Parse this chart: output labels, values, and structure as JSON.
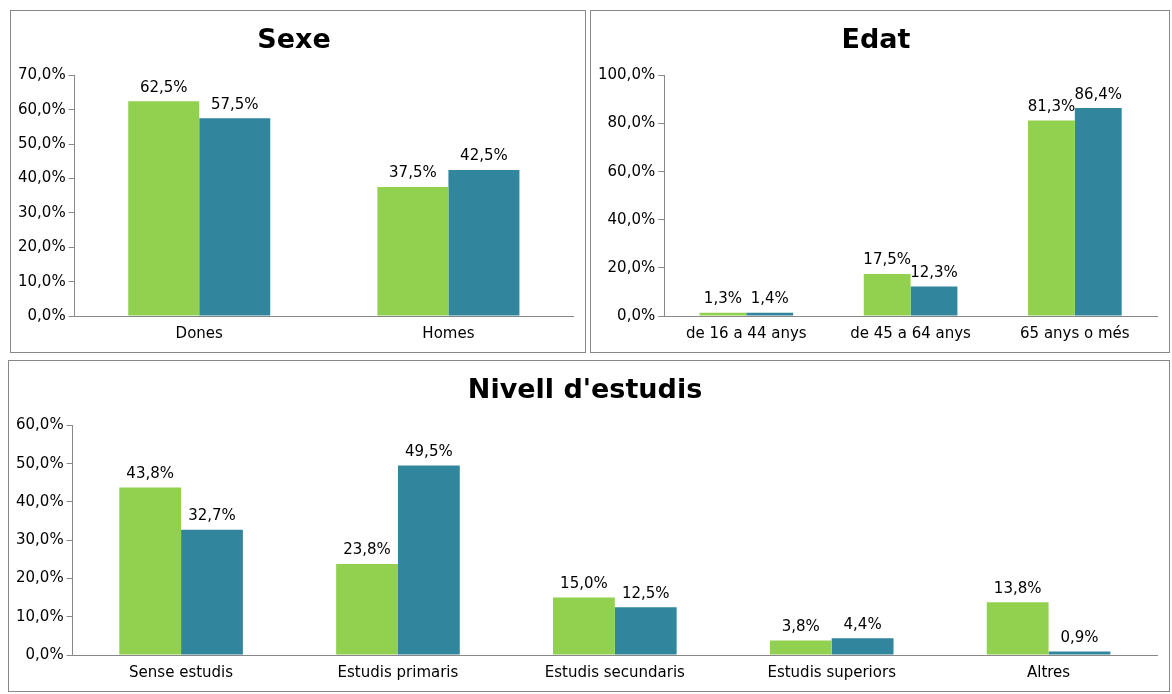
{
  "chart_data": [
    {
      "type": "bar",
      "title": "Sexe",
      "categories": [
        "Dones",
        "Homes"
      ],
      "series": [
        {
          "color": "#92d050",
          "values": [
            62.5,
            37.5
          ],
          "value_labels": [
            "62,5%",
            "37,5%"
          ]
        },
        {
          "color": "#31859c",
          "values": [
            57.5,
            42.5
          ],
          "value_labels": [
            "57,5%",
            "42,5%"
          ]
        }
      ],
      "ylim": [
        0,
        70
      ],
      "yticks": [
        {
          "value": 0,
          "label": "0,0%"
        },
        {
          "value": 10,
          "label": "10,0%"
        },
        {
          "value": 20,
          "label": "20,0%"
        },
        {
          "value": 30,
          "label": "30,0%"
        },
        {
          "value": 40,
          "label": "40,0%"
        },
        {
          "value": 50,
          "label": "50,0%"
        },
        {
          "value": 60,
          "label": "60,0%"
        },
        {
          "value": 70,
          "label": "70,0%"
        }
      ],
      "grid": false,
      "legend": false
    },
    {
      "type": "bar",
      "title": "Edat",
      "categories": [
        "de 16 a 44 anys",
        "de 45 a 64 anys",
        "65 anys o més"
      ],
      "series": [
        {
          "color": "#92d050",
          "values": [
            1.3,
            17.5,
            81.3
          ],
          "value_labels": [
            "1,3%",
            "17,5%",
            "81,3%"
          ]
        },
        {
          "color": "#31859c",
          "values": [
            1.4,
            12.3,
            86.4
          ],
          "value_labels": [
            "1,4%",
            "12,3%",
            "86,4%"
          ]
        }
      ],
      "ylim": [
        0,
        100
      ],
      "yticks": [
        {
          "value": 0,
          "label": "0,0%"
        },
        {
          "value": 20,
          "label": "20,0%"
        },
        {
          "value": 40,
          "label": "40,0%"
        },
        {
          "value": 60,
          "label": "60,0%"
        },
        {
          "value": 80,
          "label": "80,0%"
        },
        {
          "value": 100,
          "label": "100,0%"
        }
      ],
      "grid": false,
      "legend": false
    },
    {
      "type": "bar",
      "title": "Nivell d'estudis",
      "categories": [
        "Sense estudis",
        "Estudis primaris",
        "Estudis secundaris",
        "Estudis superiors",
        "Altres"
      ],
      "series": [
        {
          "color": "#92d050",
          "values": [
            43.8,
            23.8,
            15.0,
            3.8,
            13.8
          ],
          "value_labels": [
            "43,8%",
            "23,8%",
            "15,0%",
            "3,8%",
            "13,8%"
          ]
        },
        {
          "color": "#31859c",
          "values": [
            32.7,
            49.5,
            12.5,
            4.4,
            0.9
          ],
          "value_labels": [
            "32,7%",
            "49,5%",
            "12,5%",
            "4,4%",
            "0,9%"
          ]
        }
      ],
      "ylim": [
        0,
        60
      ],
      "yticks": [
        {
          "value": 0,
          "label": "0,0%"
        },
        {
          "value": 10,
          "label": "10,0%"
        },
        {
          "value": 20,
          "label": "20,0%"
        },
        {
          "value": 30,
          "label": "30,0%"
        },
        {
          "value": 40,
          "label": "40,0%"
        },
        {
          "value": 50,
          "label": "50,0%"
        },
        {
          "value": 60,
          "label": "60,0%"
        }
      ],
      "grid": false,
      "legend": false
    }
  ]
}
